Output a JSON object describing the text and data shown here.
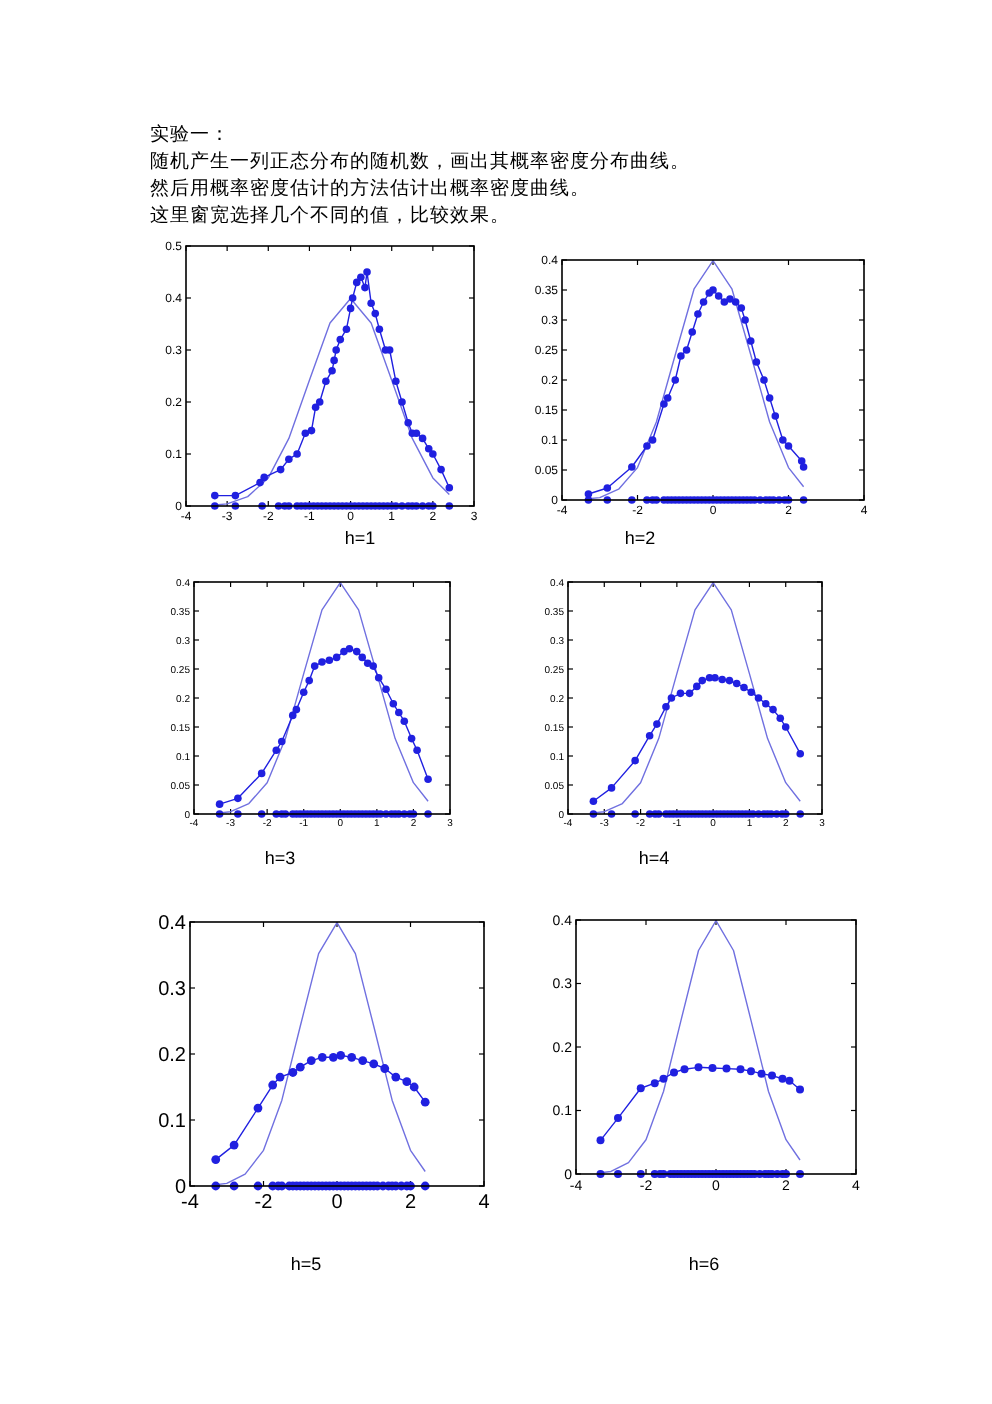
{
  "chart_data": [
    {
      "type": "line",
      "xlabel": "h=1",
      "annotations": [
        "实验一：",
        "随机产生一列正态分布的随机数，画出其概率密度分布曲线。",
        "然后用概率密度估计的方法估计出概率密度曲线。",
        "这里窗宽选择几个不同的值，比较效果。"
      ],
      "xlim": [
        -4,
        3
      ],
      "xticks": [
        -4,
        -3,
        -2,
        -1,
        0,
        1,
        2,
        3
      ],
      "ylim": [
        0,
        0.5
      ],
      "yticks": [
        0,
        0.1,
        0.2,
        0.3,
        0.4,
        0.5
      ],
      "series": [
        {
          "type": "line",
          "marker": "none",
          "color": "#7070e0",
          "x": [
            -3.3,
            -3,
            -2.5,
            -2,
            -1.5,
            -1,
            -0.5,
            0,
            0.5,
            1,
            1.5,
            2,
            2.4
          ],
          "values": [
            0.002,
            0.004,
            0.018,
            0.054,
            0.13,
            0.242,
            0.352,
            0.399,
            0.352,
            0.242,
            0.13,
            0.054,
            0.022
          ]
        },
        {
          "type": "line",
          "marker": "circle",
          "color": "#2020e0",
          "x": [
            -3.3,
            -2.8,
            -2.2,
            -2.1,
            -1.7,
            -1.5,
            -1.3,
            -1.1,
            -0.95,
            -0.85,
            -0.75,
            -0.6,
            -0.45,
            -0.4,
            -0.35,
            -0.25,
            -0.1,
            0,
            0.05,
            0.15,
            0.25,
            0.35,
            0.4,
            0.5,
            0.6,
            0.7,
            0.85,
            0.95,
            1.1,
            1.25,
            1.4,
            1.5,
            1.6,
            1.75,
            1.9,
            2.0,
            2.2,
            2.4
          ],
          "values": [
            0.02,
            0.02,
            0.045,
            0.055,
            0.07,
            0.09,
            0.1,
            0.14,
            0.145,
            0.19,
            0.2,
            0.24,
            0.26,
            0.28,
            0.3,
            0.32,
            0.34,
            0.38,
            0.4,
            0.43,
            0.44,
            0.42,
            0.45,
            0.39,
            0.37,
            0.34,
            0.3,
            0.3,
            0.24,
            0.2,
            0.16,
            0.14,
            0.14,
            0.13,
            0.11,
            0.1,
            0.07,
            0.035
          ]
        },
        {
          "type": "scatter",
          "marker": "circle",
          "color": "#2020e0",
          "x": [
            -3.3,
            -2.8,
            -2.15,
            -1.75,
            -1.6,
            -1.5,
            -1.3,
            -1.2,
            -1.1,
            -1.0,
            -0.9,
            -0.8,
            -0.7,
            -0.6,
            -0.5,
            -0.4,
            -0.3,
            -0.2,
            -0.1,
            0,
            0.1,
            0.2,
            0.3,
            0.4,
            0.5,
            0.6,
            0.7,
            0.8,
            0.9,
            1.0,
            1.1,
            1.25,
            1.4,
            1.5,
            1.6,
            1.75,
            1.9,
            2.0,
            2.4
          ],
          "values": [
            0,
            0,
            0,
            0,
            0,
            0,
            0,
            0,
            0,
            0,
            0,
            0,
            0,
            0,
            0,
            0,
            0,
            0,
            0,
            0,
            0,
            0,
            0,
            0,
            0,
            0,
            0,
            0,
            0,
            0,
            0,
            0,
            0,
            0,
            0,
            0,
            0,
            0,
            0
          ]
        }
      ]
    },
    {
      "type": "line",
      "xlabel": "h=2",
      "xlim": [
        -4,
        4
      ],
      "xticks": [
        -4,
        -2,
        0,
        2,
        4
      ],
      "ylim": [
        0,
        0.4
      ],
      "yticks": [
        0,
        0.05,
        0.1,
        0.15,
        0.2,
        0.25,
        0.3,
        0.35,
        0.4
      ],
      "series": [
        {
          "type": "line",
          "marker": "none",
          "color": "#7070e0",
          "x": [
            -3.3,
            -3,
            -2.5,
            -2,
            -1.5,
            -1,
            -0.5,
            0,
            0.5,
            1,
            1.5,
            2,
            2.4
          ],
          "values": [
            0.002,
            0.004,
            0.018,
            0.054,
            0.13,
            0.242,
            0.352,
            0.399,
            0.352,
            0.242,
            0.13,
            0.054,
            0.022
          ]
        },
        {
          "type": "line",
          "marker": "circle",
          "color": "#2020e0",
          "x": [
            -3.3,
            -2.8,
            -2.15,
            -1.75,
            -1.6,
            -1.3,
            -1.2,
            -1.0,
            -0.85,
            -0.7,
            -0.55,
            -0.4,
            -0.25,
            -0.1,
            0,
            0.15,
            0.3,
            0.45,
            0.6,
            0.75,
            0.85,
            1.0,
            1.15,
            1.35,
            1.5,
            1.65,
            1.85,
            2.0,
            2.35,
            2.4
          ],
          "values": [
            0.01,
            0.02,
            0.055,
            0.09,
            0.1,
            0.16,
            0.17,
            0.2,
            0.24,
            0.25,
            0.28,
            0.31,
            0.33,
            0.345,
            0.35,
            0.34,
            0.33,
            0.335,
            0.33,
            0.32,
            0.3,
            0.265,
            0.23,
            0.2,
            0.17,
            0.14,
            0.1,
            0.09,
            0.065,
            0.055
          ]
        },
        {
          "type": "scatter",
          "marker": "circle",
          "color": "#2020e0",
          "x": [
            -3.3,
            -2.8,
            -2.15,
            -1.75,
            -1.6,
            -1.5,
            -1.3,
            -1.2,
            -1.1,
            -1.0,
            -0.9,
            -0.8,
            -0.7,
            -0.6,
            -0.5,
            -0.4,
            -0.3,
            -0.2,
            -0.1,
            0,
            0.1,
            0.2,
            0.3,
            0.4,
            0.5,
            0.6,
            0.7,
            0.8,
            0.9,
            1.0,
            1.1,
            1.25,
            1.4,
            1.5,
            1.6,
            1.75,
            1.9,
            2.0,
            2.4
          ],
          "values": [
            0,
            0,
            0,
            0,
            0,
            0,
            0,
            0,
            0,
            0,
            0,
            0,
            0,
            0,
            0,
            0,
            0,
            0,
            0,
            0,
            0,
            0,
            0,
            0,
            0,
            0,
            0,
            0,
            0,
            0,
            0,
            0,
            0,
            0,
            0,
            0,
            0,
            0,
            0
          ]
        }
      ]
    },
    {
      "type": "line",
      "xlabel": "h=3",
      "xlim": [
        -4,
        3
      ],
      "xticks": [
        -4,
        -3,
        -2,
        -1,
        0,
        1,
        2,
        3
      ],
      "ylim": [
        0,
        0.4
      ],
      "yticks": [
        0,
        0.05,
        0.1,
        0.15,
        0.2,
        0.25,
        0.3,
        0.35,
        0.4
      ],
      "series": [
        {
          "type": "line",
          "marker": "none",
          "color": "#7070e0",
          "x": [
            -3.3,
            -3,
            -2.5,
            -2,
            -1.5,
            -1,
            -0.5,
            0,
            0.5,
            1,
            1.5,
            2,
            2.4
          ],
          "values": [
            0.002,
            0.004,
            0.018,
            0.054,
            0.13,
            0.242,
            0.352,
            0.399,
            0.352,
            0.242,
            0.13,
            0.054,
            0.022
          ]
        },
        {
          "type": "line",
          "marker": "circle",
          "color": "#2020e0",
          "x": [
            -3.3,
            -2.8,
            -2.15,
            -1.75,
            -1.6,
            -1.3,
            -1.2,
            -1.0,
            -0.85,
            -0.7,
            -0.5,
            -0.3,
            -0.1,
            0.1,
            0.25,
            0.45,
            0.6,
            0.75,
            0.9,
            1.05,
            1.25,
            1.45,
            1.6,
            1.75,
            1.95,
            2.1,
            2.4
          ],
          "values": [
            0.017,
            0.027,
            0.07,
            0.11,
            0.125,
            0.17,
            0.18,
            0.21,
            0.23,
            0.255,
            0.262,
            0.265,
            0.27,
            0.28,
            0.285,
            0.28,
            0.27,
            0.26,
            0.255,
            0.235,
            0.215,
            0.19,
            0.175,
            0.16,
            0.13,
            0.11,
            0.06
          ]
        },
        {
          "type": "scatter",
          "marker": "circle",
          "color": "#2020e0",
          "x": [
            -3.3,
            -2.8,
            -2.15,
            -1.75,
            -1.6,
            -1.5,
            -1.3,
            -1.2,
            -1.1,
            -1.0,
            -0.9,
            -0.8,
            -0.7,
            -0.6,
            -0.5,
            -0.4,
            -0.3,
            -0.2,
            -0.1,
            0,
            0.1,
            0.2,
            0.3,
            0.4,
            0.5,
            0.6,
            0.7,
            0.8,
            0.9,
            1.0,
            1.1,
            1.25,
            1.4,
            1.5,
            1.6,
            1.75,
            1.9,
            2.0,
            2.4
          ],
          "values": [
            0,
            0,
            0,
            0,
            0,
            0,
            0,
            0,
            0,
            0,
            0,
            0,
            0,
            0,
            0,
            0,
            0,
            0,
            0,
            0,
            0,
            0,
            0,
            0,
            0,
            0,
            0,
            0,
            0,
            0,
            0,
            0,
            0,
            0,
            0,
            0,
            0,
            0,
            0
          ]
        }
      ]
    },
    {
      "type": "line",
      "xlabel": "h=4",
      "xlim": [
        -4,
        3
      ],
      "xticks": [
        -4,
        -3,
        -2,
        -1,
        0,
        1,
        2,
        3
      ],
      "ylim": [
        0,
        0.4
      ],
      "yticks": [
        0,
        0.05,
        0.1,
        0.15,
        0.2,
        0.25,
        0.3,
        0.35,
        0.4
      ],
      "series": [
        {
          "type": "line",
          "marker": "none",
          "color": "#7070e0",
          "x": [
            -3.3,
            -3,
            -2.5,
            -2,
            -1.5,
            -1,
            -0.5,
            0,
            0.5,
            1,
            1.5,
            2,
            2.4
          ],
          "values": [
            0.002,
            0.004,
            0.018,
            0.054,
            0.13,
            0.242,
            0.352,
            0.399,
            0.352,
            0.242,
            0.13,
            0.054,
            0.022
          ]
        },
        {
          "type": "line",
          "marker": "circle",
          "color": "#2020e0",
          "x": [
            -3.3,
            -2.8,
            -2.15,
            -1.75,
            -1.55,
            -1.3,
            -1.15,
            -0.9,
            -0.65,
            -0.45,
            -0.3,
            -0.1,
            0.05,
            0.25,
            0.45,
            0.65,
            0.85,
            1.05,
            1.25,
            1.45,
            1.65,
            1.85,
            2.0,
            2.4
          ],
          "values": [
            0.022,
            0.045,
            0.092,
            0.135,
            0.155,
            0.185,
            0.2,
            0.208,
            0.208,
            0.22,
            0.23,
            0.235,
            0.235,
            0.232,
            0.23,
            0.225,
            0.218,
            0.21,
            0.2,
            0.19,
            0.18,
            0.165,
            0.15,
            0.104
          ]
        },
        {
          "type": "scatter",
          "marker": "circle",
          "color": "#2020e0",
          "x": [
            -3.3,
            -2.8,
            -2.15,
            -1.75,
            -1.6,
            -1.5,
            -1.3,
            -1.2,
            -1.1,
            -1.0,
            -0.9,
            -0.8,
            -0.7,
            -0.6,
            -0.5,
            -0.4,
            -0.3,
            -0.2,
            -0.1,
            0,
            0.1,
            0.2,
            0.3,
            0.4,
            0.5,
            0.6,
            0.7,
            0.8,
            0.9,
            1.0,
            1.1,
            1.25,
            1.4,
            1.5,
            1.6,
            1.75,
            1.9,
            2.0,
            2.4
          ],
          "values": [
            0,
            0,
            0,
            0,
            0,
            0,
            0,
            0,
            0,
            0,
            0,
            0,
            0,
            0,
            0,
            0,
            0,
            0,
            0,
            0,
            0,
            0,
            0,
            0,
            0,
            0,
            0,
            0,
            0,
            0,
            0,
            0,
            0,
            0,
            0,
            0,
            0,
            0,
            0
          ]
        }
      ]
    },
    {
      "type": "line",
      "xlabel": "h=5",
      "xlim": [
        -4,
        4
      ],
      "xticks": [
        -4,
        -2,
        0,
        2,
        4
      ],
      "ylim": [
        0,
        0.4
      ],
      "yticks": [
        0,
        0.1,
        0.2,
        0.3,
        0.4
      ],
      "series": [
        {
          "type": "line",
          "marker": "none",
          "color": "#7070e0",
          "x": [
            -3.3,
            -3,
            -2.5,
            -2,
            -1.5,
            -1,
            -0.5,
            0,
            0.5,
            1,
            1.5,
            2,
            2.4
          ],
          "values": [
            0.002,
            0.004,
            0.018,
            0.054,
            0.13,
            0.242,
            0.352,
            0.399,
            0.352,
            0.242,
            0.13,
            0.054,
            0.022
          ]
        },
        {
          "type": "line",
          "marker": "circle",
          "color": "#2020e0",
          "x": [
            -3.3,
            -2.8,
            -2.15,
            -1.75,
            -1.55,
            -1.2,
            -1.0,
            -0.7,
            -0.4,
            -0.1,
            0.1,
            0.4,
            0.7,
            1.0,
            1.3,
            1.6,
            1.9,
            2.1,
            2.4
          ],
          "values": [
            0.04,
            0.062,
            0.118,
            0.153,
            0.165,
            0.172,
            0.18,
            0.19,
            0.195,
            0.195,
            0.198,
            0.195,
            0.19,
            0.185,
            0.178,
            0.165,
            0.158,
            0.15,
            0.127
          ]
        },
        {
          "type": "scatter",
          "marker": "circle",
          "color": "#2020e0",
          "x": [
            -3.3,
            -2.8,
            -2.15,
            -1.75,
            -1.6,
            -1.5,
            -1.3,
            -1.2,
            -1.1,
            -1.0,
            -0.9,
            -0.8,
            -0.7,
            -0.6,
            -0.5,
            -0.4,
            -0.3,
            -0.2,
            -0.1,
            0,
            0.1,
            0.2,
            0.3,
            0.4,
            0.5,
            0.6,
            0.7,
            0.8,
            0.9,
            1.0,
            1.1,
            1.25,
            1.4,
            1.5,
            1.6,
            1.75,
            1.9,
            2.0,
            2.4
          ],
          "values": [
            0,
            0,
            0,
            0,
            0,
            0,
            0,
            0,
            0,
            0,
            0,
            0,
            0,
            0,
            0,
            0,
            0,
            0,
            0,
            0,
            0,
            0,
            0,
            0,
            0,
            0,
            0,
            0,
            0,
            0,
            0,
            0,
            0,
            0,
            0,
            0,
            0,
            0,
            0
          ]
        }
      ]
    },
    {
      "type": "line",
      "xlabel": "h=6",
      "xlim": [
        -4,
        4
      ],
      "xticks": [
        -4,
        -2,
        0,
        2,
        4
      ],
      "ylim": [
        0,
        0.4
      ],
      "yticks": [
        0,
        0.1,
        0.2,
        0.3,
        0.4
      ],
      "series": [
        {
          "type": "line",
          "marker": "none",
          "color": "#7070e0",
          "x": [
            -3.3,
            -3,
            -2.5,
            -2,
            -1.5,
            -1,
            -0.5,
            0,
            0.5,
            1,
            1.5,
            2,
            2.4
          ],
          "values": [
            0.002,
            0.004,
            0.018,
            0.054,
            0.13,
            0.242,
            0.352,
            0.399,
            0.352,
            0.242,
            0.13,
            0.054,
            0.022
          ]
        },
        {
          "type": "line",
          "marker": "circle",
          "color": "#2020e0",
          "x": [
            -3.3,
            -2.8,
            -2.15,
            -1.75,
            -1.5,
            -1.2,
            -0.9,
            -0.5,
            -0.1,
            0.3,
            0.7,
            1.0,
            1.3,
            1.6,
            1.9,
            2.1,
            2.4
          ],
          "values": [
            0.053,
            0.088,
            0.135,
            0.143,
            0.15,
            0.16,
            0.165,
            0.168,
            0.167,
            0.166,
            0.165,
            0.162,
            0.158,
            0.155,
            0.15,
            0.147,
            0.133
          ]
        },
        {
          "type": "scatter",
          "marker": "circle",
          "color": "#2020e0",
          "x": [
            -3.3,
            -2.8,
            -2.15,
            -1.75,
            -1.6,
            -1.5,
            -1.3,
            -1.2,
            -1.1,
            -1.0,
            -0.9,
            -0.8,
            -0.7,
            -0.6,
            -0.5,
            -0.4,
            -0.3,
            -0.2,
            -0.1,
            0,
            0.1,
            0.2,
            0.3,
            0.4,
            0.5,
            0.6,
            0.7,
            0.8,
            0.9,
            1.0,
            1.1,
            1.25,
            1.4,
            1.5,
            1.6,
            1.75,
            1.9,
            2.0,
            2.4
          ],
          "values": [
            0,
            0,
            0,
            0,
            0,
            0,
            0,
            0,
            0,
            0,
            0,
            0,
            0,
            0,
            0,
            0,
            0,
            0,
            0,
            0,
            0,
            0,
            0,
            0,
            0,
            0,
            0,
            0,
            0,
            0,
            0,
            0,
            0,
            0,
            0,
            0,
            0,
            0,
            0
          ]
        }
      ]
    }
  ]
}
